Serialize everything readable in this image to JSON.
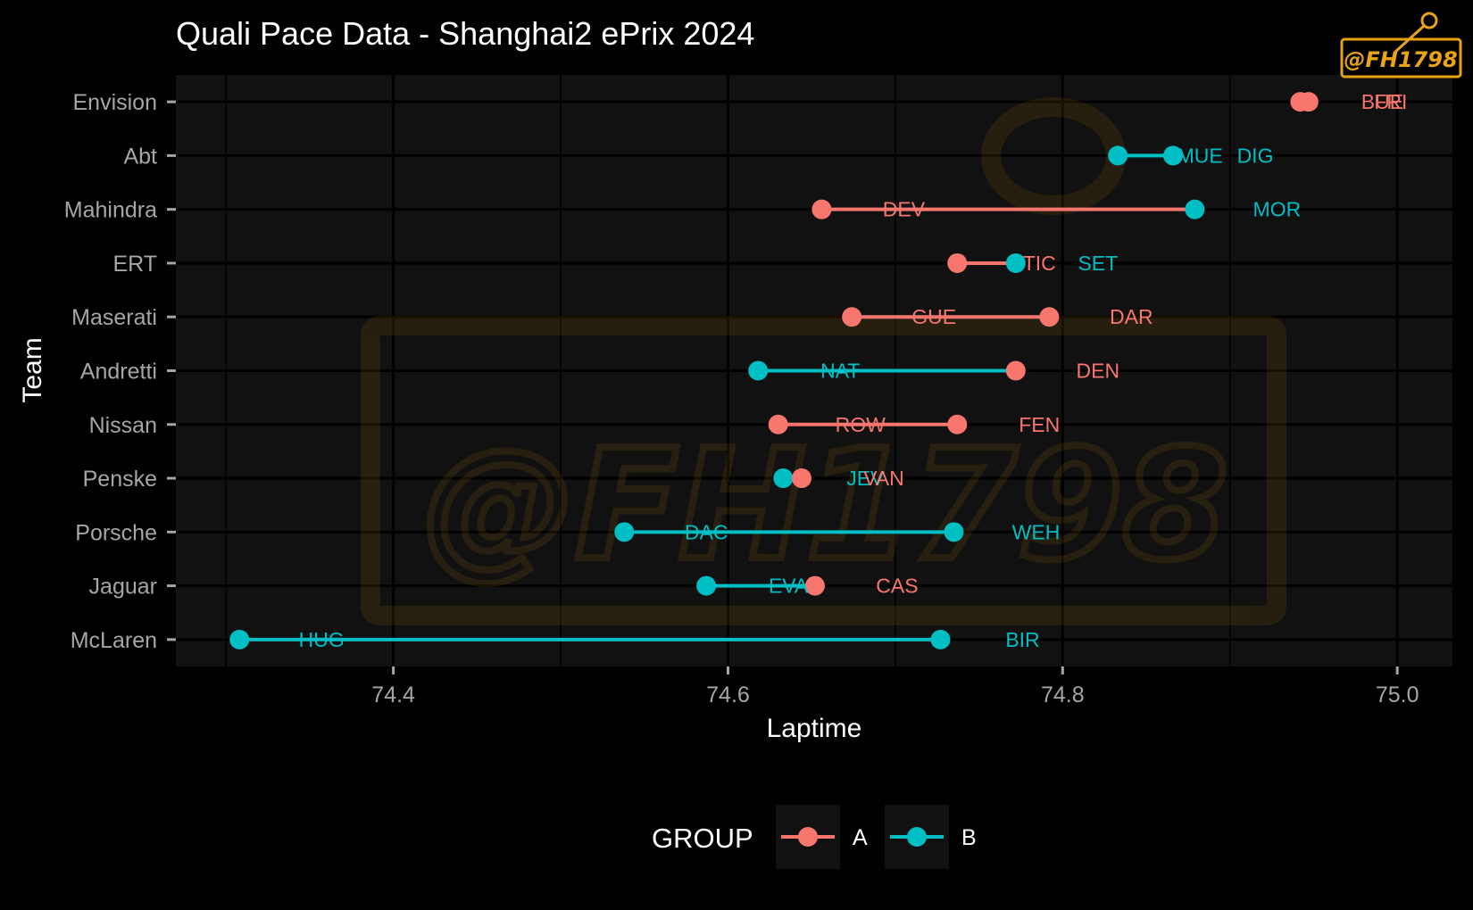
{
  "chart_data": {
    "type": "dumbbell",
    "title": "Quali Pace Data - Shanghai2 ePrix 2024",
    "xlabel": "Laptime",
    "ylabel": "Team",
    "xlim": [
      74.27,
      75.033
    ],
    "xticks": [
      "74.4",
      "74.6",
      "74.8",
      "75.0"
    ],
    "grid": true,
    "legend": {
      "title": "GROUP",
      "position": "bottom",
      "entries": [
        {
          "name": "A",
          "color": "#f8766d"
        },
        {
          "name": "B",
          "color": "#00bfc4"
        }
      ]
    },
    "categories": [
      "McLaren",
      "Jaguar",
      "Porsche",
      "Penske",
      "Nissan",
      "Andretti",
      "Maserati",
      "ERT",
      "Mahindra",
      "Abt",
      "Envision"
    ],
    "rows": [
      {
        "team": "McLaren",
        "drivers": [
          {
            "driver": "HUG",
            "laptime": 74.308,
            "group": "B"
          },
          {
            "driver": "BIR",
            "laptime": 74.727,
            "group": "B"
          }
        ]
      },
      {
        "team": "Jaguar",
        "drivers": [
          {
            "driver": "EVA",
            "laptime": 74.587,
            "group": "B"
          },
          {
            "driver": "CAS",
            "laptime": 74.652,
            "group": "A"
          }
        ]
      },
      {
        "team": "Porsche",
        "drivers": [
          {
            "driver": "DAC",
            "laptime": 74.538,
            "group": "B"
          },
          {
            "driver": "WEH",
            "laptime": 74.735,
            "group": "B"
          }
        ]
      },
      {
        "team": "Penske",
        "drivers": [
          {
            "driver": "JEV",
            "laptime": 74.633,
            "group": "B"
          },
          {
            "driver": "VAN",
            "laptime": 74.644,
            "group": "A"
          }
        ]
      },
      {
        "team": "Nissan",
        "drivers": [
          {
            "driver": "ROW",
            "laptime": 74.63,
            "group": "A"
          },
          {
            "driver": "FEN",
            "laptime": 74.737,
            "group": "A"
          }
        ]
      },
      {
        "team": "Andretti",
        "drivers": [
          {
            "driver": "NAT",
            "laptime": 74.618,
            "group": "B"
          },
          {
            "driver": "DEN",
            "laptime": 74.772,
            "group": "A"
          }
        ]
      },
      {
        "team": "Maserati",
        "drivers": [
          {
            "driver": "GUE",
            "laptime": 74.674,
            "group": "A"
          },
          {
            "driver": "DAR",
            "laptime": 74.792,
            "group": "A"
          }
        ]
      },
      {
        "team": "ERT",
        "drivers": [
          {
            "driver": "TIC",
            "laptime": 74.737,
            "group": "A"
          },
          {
            "driver": "SET",
            "laptime": 74.772,
            "group": "B"
          }
        ]
      },
      {
        "team": "Mahindra",
        "drivers": [
          {
            "driver": "DEV",
            "laptime": 74.656,
            "group": "A"
          },
          {
            "driver": "MOR",
            "laptime": 74.879,
            "group": "B"
          }
        ]
      },
      {
        "team": "Abt",
        "drivers": [
          {
            "driver": "MUE",
            "laptime": 74.833,
            "group": "B"
          },
          {
            "driver": "DIG",
            "laptime": 74.866,
            "group": "B"
          }
        ]
      },
      {
        "team": "Envision",
        "drivers": [
          {
            "driver": "BUE",
            "laptime": 74.942,
            "group": "A"
          },
          {
            "driver": "FRI",
            "laptime": 74.947,
            "group": "A"
          }
        ]
      }
    ]
  },
  "watermark": {
    "text": "@FH1798"
  }
}
